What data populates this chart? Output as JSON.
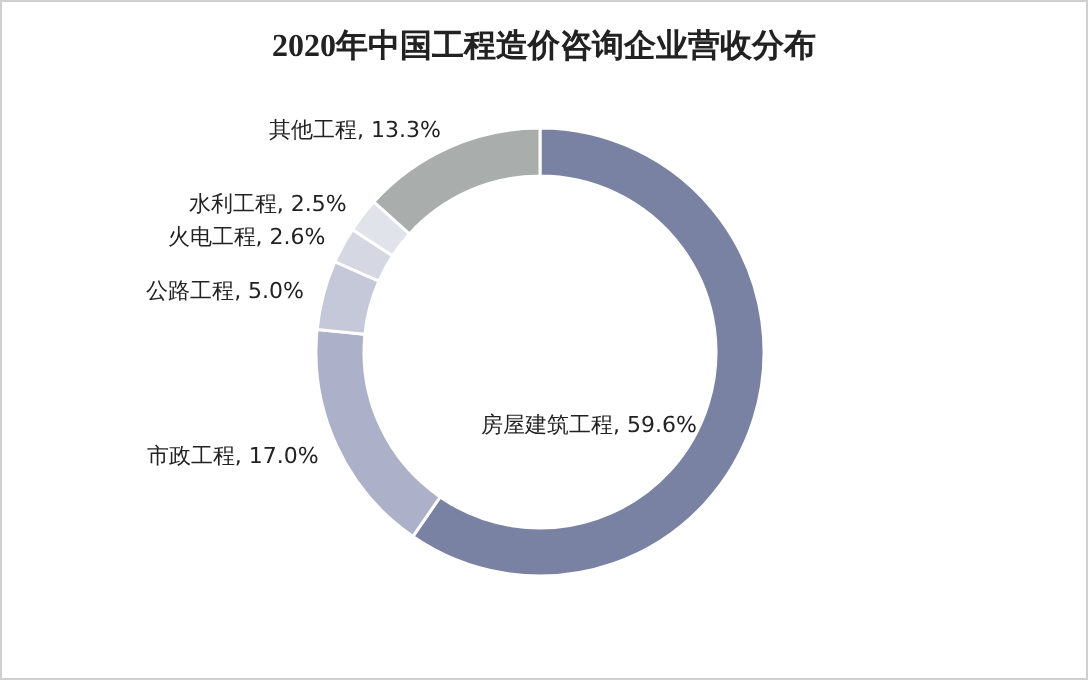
{
  "chart_data": {
    "type": "donut",
    "title": "2020年中国工程造价咨询企业营收分布",
    "categories": [
      "房屋建筑工程",
      "市政工程",
      "公路工程",
      "火电工程",
      "水利工程",
      "其他工程"
    ],
    "values": [
      59.6,
      17.0,
      5.0,
      2.6,
      2.5,
      13.3
    ],
    "colors": [
      "#7a82a3",
      "#acb0c8",
      "#c5c8d8",
      "#d5d7e3",
      "#e1e3eb",
      "#a9aeac"
    ],
    "value_labels": [
      ", 59.6%",
      ", 17.0%",
      ", 5.0%",
      ", 2.6%",
      ", 2.5%",
      ", 13.3%"
    ]
  }
}
